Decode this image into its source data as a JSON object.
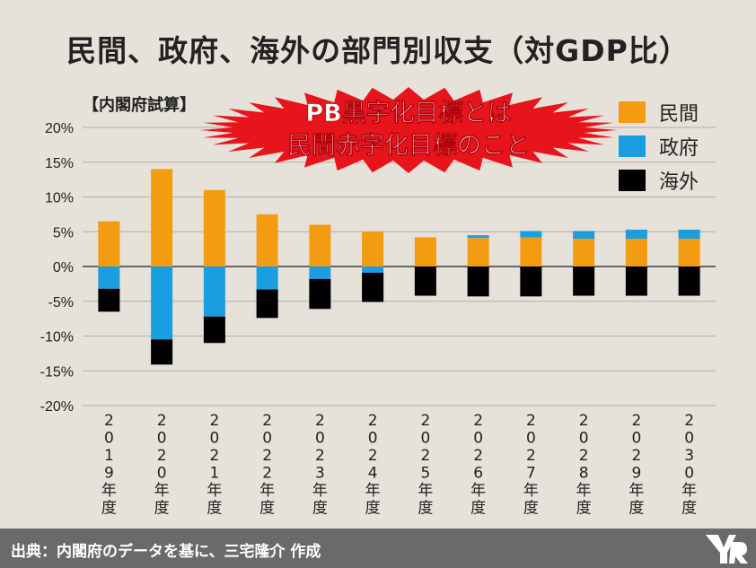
{
  "title": "民間、政府、海外の部門別収支（対GDP比）",
  "subtitle": "【内閣府試算】",
  "annotation": {
    "lines": [
      "PB黒字化目標とは",
      "民間赤字化目標のこと"
    ],
    "text_color": "#ffffff",
    "burst_color": "#e8141c"
  },
  "footer": {
    "text": "出典：内閣府のデータを基に、三宅隆介 作成"
  },
  "chart_data": {
    "type": "bar",
    "stacked": true,
    "categories": [
      "2019年度",
      "2020年度",
      "2021年度",
      "2022年度",
      "2023年度",
      "2024年度",
      "2025年度",
      "2026年度",
      "2027年度",
      "2028年度",
      "2029年度",
      "2030年度"
    ],
    "series": [
      {
        "name": "民間",
        "color": "#f39c12",
        "values": [
          6.5,
          14.0,
          11.0,
          7.5,
          6.0,
          5.0,
          4.2,
          4.1,
          4.2,
          4.0,
          4.0,
          4.0
        ]
      },
      {
        "name": "政府",
        "color": "#1a9ee0",
        "values": [
          -3.2,
          -10.5,
          -7.2,
          -3.3,
          -1.8,
          -0.9,
          0.0,
          0.4,
          0.9,
          1.1,
          1.3,
          1.3
        ]
      },
      {
        "name": "海外",
        "color": "#000000",
        "values": [
          -3.3,
          -3.6,
          -3.8,
          -4.1,
          -4.3,
          -4.2,
          -4.2,
          -4.3,
          -4.3,
          -4.2,
          -4.2,
          -4.2
        ]
      }
    ],
    "ylim": [
      -20,
      20
    ],
    "yticks": [
      20,
      15,
      10,
      5,
      0,
      -5,
      -10,
      -15,
      -20
    ],
    "ytick_labels": [
      "20%",
      "15%",
      "10%",
      "5%",
      "0%",
      "-5%",
      "-10%",
      "-15%",
      "-20%"
    ],
    "grid": true,
    "legend_position": "top-right"
  }
}
